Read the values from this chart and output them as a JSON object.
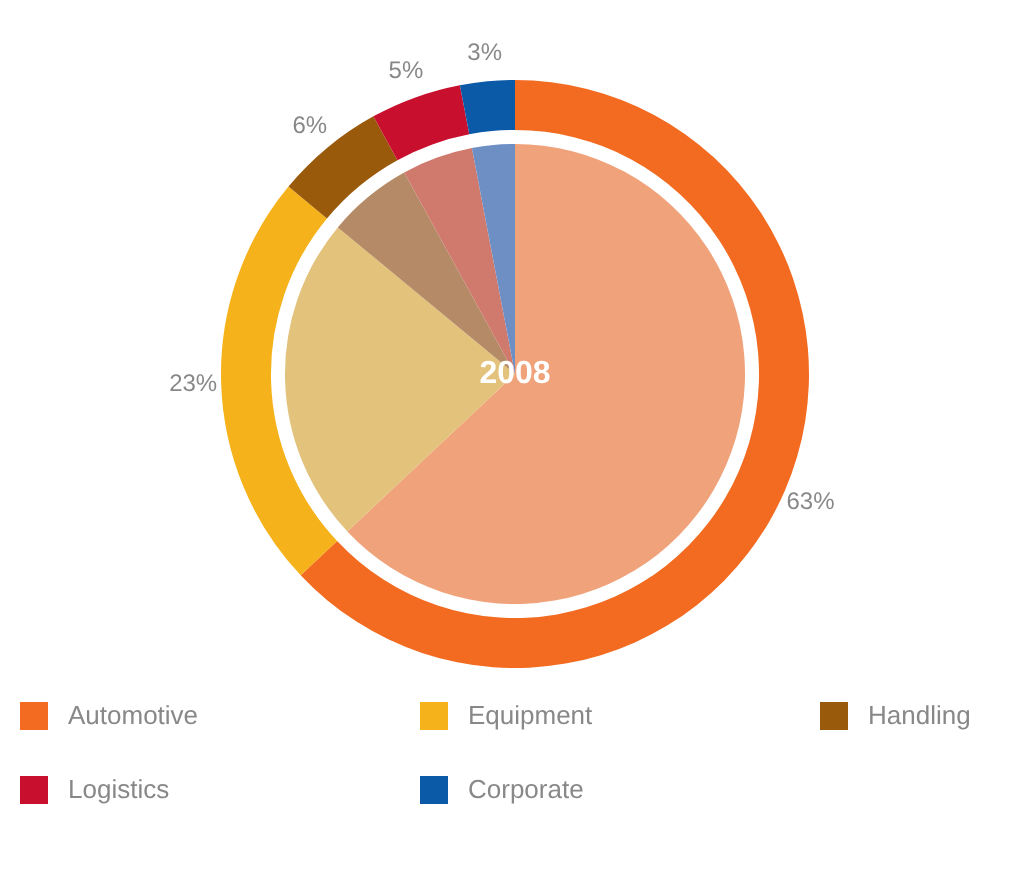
{
  "chart_data": {
    "type": "donut",
    "categories": [
      "Automotive",
      "Equipment",
      "Handling",
      "Logistics",
      "Corporate"
    ],
    "series": [
      {
        "type": "pie",
        "values": [
          63,
          23,
          6,
          5,
          3
        ],
        "colors": [
          "#f0a37a",
          "#e3c27c",
          "#b58a66",
          "#d07a6e",
          "#6e8fc4"
        ]
      },
      {
        "values": [
          63,
          23,
          6,
          5,
          3
        ],
        "colors": [
          "#f26b21",
          "#f5b21a",
          "#9a5a0c",
          "#c8102e",
          "#0b5aa8"
        ]
      }
    ],
    "value_labels": [
      "63%",
      "23%",
      "6%",
      "5%",
      "3%"
    ],
    "annotations": [
      "2008"
    ],
    "legend": "bottom"
  }
}
